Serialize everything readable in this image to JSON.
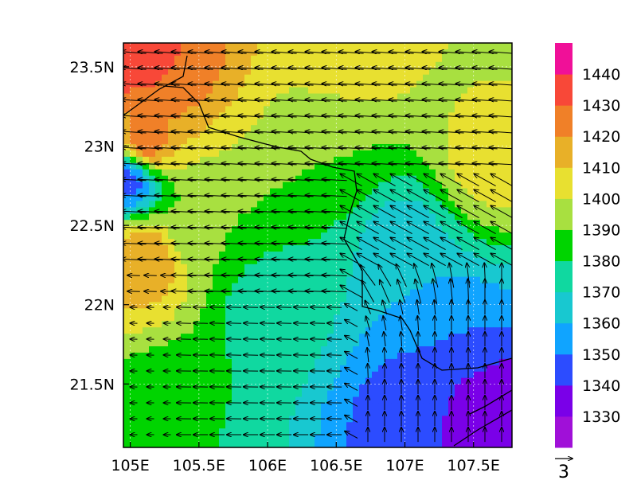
{
  "chart_data": {
    "type": "heatmap",
    "title": "",
    "xlabel": "",
    "ylabel": "",
    "x_range": [
      104.95,
      107.78
    ],
    "y_range": [
      21.1,
      23.65
    ],
    "x_ticks": [
      105.0,
      105.5,
      106.0,
      106.5,
      107.0,
      107.5
    ],
    "x_tick_labels": [
      "105E",
      "105.5E",
      "106E",
      "106.5E",
      "107E",
      "107.5E"
    ],
    "y_ticks": [
      21.5,
      22.0,
      22.5,
      23.0,
      23.5
    ],
    "y_tick_labels": [
      "21.5N",
      "22N",
      "22.5N",
      "23N",
      "23.5N"
    ],
    "grid": true,
    "colorbar": {
      "levels": [
        1330,
        1340,
        1350,
        1360,
        1370,
        1380,
        1390,
        1400,
        1410,
        1420,
        1430,
        1440
      ],
      "level_labels": [
        "1330",
        "1340",
        "1350",
        "1360",
        "1370",
        "1380",
        "1390",
        "1400",
        "1410",
        "1420",
        "1430",
        "1440"
      ],
      "colors": [
        "#a010d8",
        "#7a00e8",
        "#2c4cff",
        "#10a4ff",
        "#18c8d0",
        "#10d8a0",
        "#00d400",
        "#a8e040",
        "#e8e030",
        "#e8b028",
        "#f08028",
        "#f84838",
        "#f01098"
      ]
    },
    "field_samples": [
      {
        "x": 105.0,
        "y": 23.6,
        "value": 1440
      },
      {
        "x": 105.2,
        "y": 23.5,
        "value": 1430
      },
      {
        "x": 105.1,
        "y": 23.0,
        "value": 1430
      },
      {
        "x": 105.0,
        "y": 22.8,
        "value": 1340
      },
      {
        "x": 105.1,
        "y": 22.3,
        "value": 1420
      },
      {
        "x": 105.5,
        "y": 22.5,
        "value": 1390
      },
      {
        "x": 106.0,
        "y": 22.0,
        "value": 1375
      },
      {
        "x": 106.5,
        "y": 23.0,
        "value": 1390
      },
      {
        "x": 106.6,
        "y": 23.6,
        "value": 1410
      },
      {
        "x": 107.6,
        "y": 23.5,
        "value": 1400
      },
      {
        "x": 107.6,
        "y": 22.9,
        "value": 1405
      },
      {
        "x": 107.0,
        "y": 22.4,
        "value": 1365
      },
      {
        "x": 107.3,
        "y": 21.8,
        "value": 1350
      },
      {
        "x": 107.0,
        "y": 21.3,
        "value": 1345
      },
      {
        "x": 107.6,
        "y": 21.3,
        "value": 1330
      },
      {
        "x": 105.3,
        "y": 21.3,
        "value": 1380
      }
    ],
    "wind_reference_vector": {
      "label": "3",
      "magnitude": 3
    }
  }
}
